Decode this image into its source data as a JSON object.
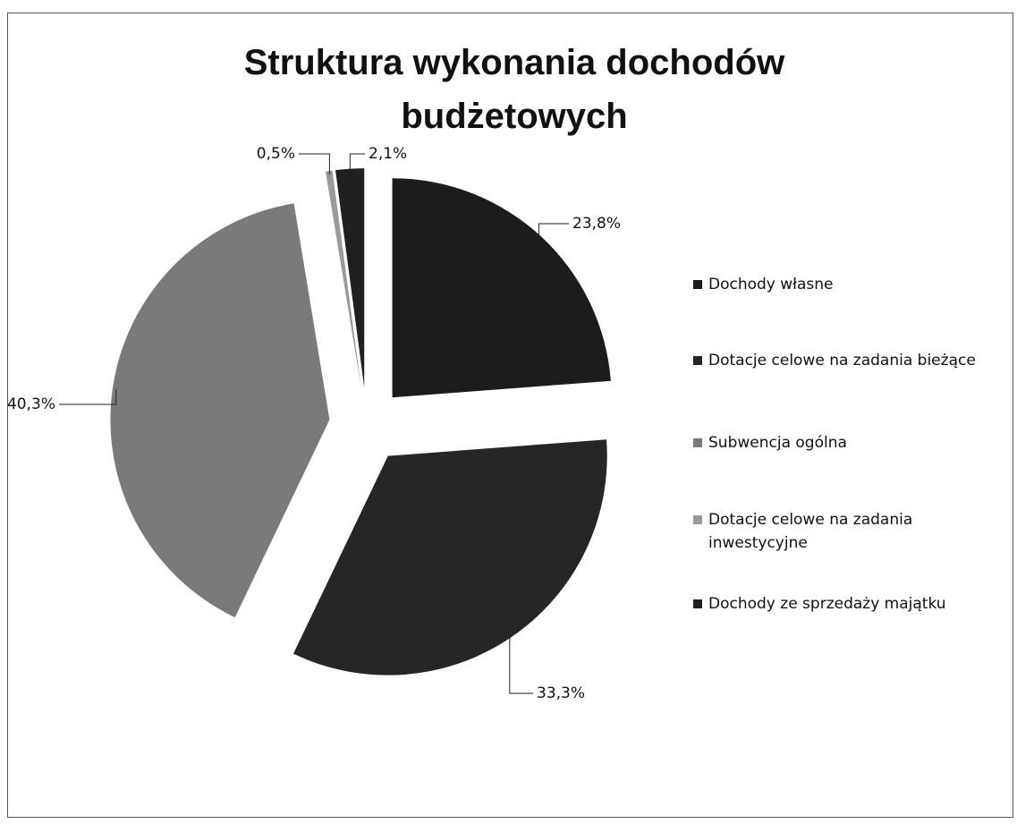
{
  "chart_data": {
    "type": "pie",
    "title": "Struktura wykonania dochodów budżetowych",
    "categories": [
      "Dochody własne",
      "Dotacje celowe na zadania bieżące",
      "Subwencja ogólna",
      "Dotacje celowe na zadania inwestycyjne",
      "Dochody ze sprzedaży majątku"
    ],
    "values": [
      23.8,
      33.3,
      40.3,
      0.5,
      2.1
    ],
    "value_labels": [
      "23,8%",
      "33,3%",
      "40,3%",
      "0,5%",
      "2,1%"
    ],
    "colors": [
      "#1c1c1c",
      "#262626",
      "#7a7a7a",
      "#9a9a9a",
      "#202020"
    ],
    "legend": "right"
  }
}
